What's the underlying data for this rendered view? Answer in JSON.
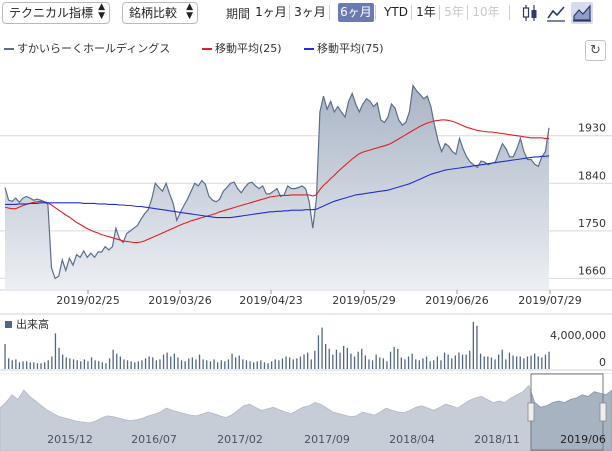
{
  "toolbar": {
    "indicator_select": "テクニカル指標",
    "compare_select": "銘柄比較",
    "period_label": "期間",
    "periods": [
      {
        "label": "1ヶ月",
        "state": "normal"
      },
      {
        "label": "3ヶ月",
        "state": "normal"
      },
      {
        "label": "6ヶ月",
        "state": "active"
      },
      {
        "label": "YTD",
        "state": "normal"
      },
      {
        "label": "1年",
        "state": "normal"
      },
      {
        "label": "5年",
        "state": "disabled"
      },
      {
        "label": "10年",
        "state": "disabled"
      }
    ],
    "chart_type_icons": [
      "candlestick-chart-icon",
      "line-chart-icon",
      "area-chart-icon"
    ],
    "active_chart_type": "area-chart-icon",
    "refresh_icon": "refresh-icon",
    "refresh_glyph": "↻"
  },
  "colors": {
    "price_line": "#5b6e8c",
    "price_fill_top": "#a9b4c5",
    "price_fill_bottom": "#e9ecf1",
    "ma25": "#e02020",
    "ma75": "#1f2fd0",
    "volume": "#4f6687",
    "overview_fill": "#a8b3c2",
    "accent": "#6a7ab3"
  },
  "chart_data": [
    {
      "type": "area",
      "series": [
        {
          "name": "すかいらーくホールディングス",
          "values": [
            1832,
            1808,
            1806,
            1812,
            1804,
            1812,
            1815,
            1812,
            1808,
            1810,
            1808,
            1805,
            1800,
            1680,
            1660,
            1664,
            1695,
            1675,
            1698,
            1685,
            1705,
            1700,
            1712,
            1700,
            1708,
            1700,
            1710,
            1710,
            1720,
            1714,
            1720,
            1755,
            1735,
            1728,
            1745,
            1750,
            1755,
            1760,
            1772,
            1782,
            1790,
            1810,
            1840,
            1832,
            1825,
            1840,
            1820,
            1802,
            1770,
            1785,
            1798,
            1810,
            1825,
            1840,
            1835,
            1845,
            1838,
            1815,
            1808,
            1805,
            1810,
            1825,
            1832,
            1840,
            1842,
            1830,
            1822,
            1832,
            1840,
            1842,
            1835,
            1830,
            1835,
            1820,
            1820,
            1825,
            1830,
            1815,
            1818,
            1835,
            1830,
            1830,
            1832,
            1835,
            1830,
            1805,
            1755,
            1810,
            1975,
            2005,
            1980,
            1995,
            1975,
            1985,
            1975,
            1965,
            1995,
            2010,
            1990,
            1975,
            1990,
            2000,
            1995,
            1985,
            1992,
            1960,
            1955,
            1965,
            1990,
            1982,
            1960,
            1950,
            1955,
            1975,
            2025,
            2015,
            2008,
            2000,
            2005,
            1985,
            1950,
            1920,
            1900,
            1915,
            1910,
            1900,
            1895,
            1925,
            1905,
            1890,
            1880,
            1875,
            1870,
            1882,
            1880,
            1875,
            1878,
            1880,
            1898,
            1915,
            1905,
            1890,
            1890,
            1905,
            1925,
            1900,
            1885,
            1885,
            1876,
            1872,
            1890,
            1900,
            1945
          ]
        },
        {
          "name": "移動平均(25)",
          "values": [
            1795,
            1793,
            1792,
            1792,
            1795,
            1798,
            1800,
            1802,
            1804,
            1805,
            1806,
            1805,
            1803,
            1799,
            1794,
            1789,
            1785,
            1780,
            1776,
            1771,
            1766,
            1762,
            1758,
            1754,
            1751,
            1748,
            1746,
            1743,
            1741,
            1739,
            1737,
            1735,
            1733,
            1731,
            1730,
            1729,
            1728,
            1728,
            1729,
            1731,
            1734,
            1737,
            1740,
            1743,
            1746,
            1749,
            1752,
            1755,
            1758,
            1761,
            1764,
            1766,
            1769,
            1771,
            1773,
            1775,
            1777,
            1779,
            1781,
            1783,
            1786,
            1788,
            1790,
            1792,
            1794,
            1796,
            1798,
            1800,
            1802,
            1804,
            1806,
            1808,
            1810,
            1812,
            1814,
            1815,
            1816,
            1817,
            1817,
            1817,
            1818,
            1818,
            1818,
            1818,
            1818,
            1818,
            1816,
            1818,
            1828,
            1836,
            1842,
            1849,
            1855,
            1862,
            1868,
            1874,
            1880,
            1886,
            1891,
            1896,
            1899,
            1901,
            1903,
            1905,
            1907,
            1909,
            1911,
            1913,
            1916,
            1920,
            1924,
            1928,
            1932,
            1936,
            1940,
            1944,
            1948,
            1951,
            1954,
            1956,
            1958,
            1959,
            1960,
            1960,
            1959,
            1957,
            1955,
            1952,
            1949,
            1946,
            1944,
            1942,
            1940,
            1939,
            1938,
            1937,
            1937,
            1936,
            1935,
            1934,
            1933,
            1932,
            1931,
            1930,
            1929,
            1928,
            1927,
            1926,
            1926,
            1926,
            1926,
            1925,
            1925
          ]
        },
        {
          "name": "移動平均(75)",
          "values": [
            1800,
            1800,
            1800,
            1800,
            1801,
            1801,
            1801,
            1802,
            1802,
            1802,
            1803,
            1803,
            1803,
            1803,
            1803,
            1803,
            1803,
            1803,
            1803,
            1803,
            1803,
            1803,
            1802,
            1802,
            1802,
            1802,
            1801,
            1801,
            1801,
            1800,
            1800,
            1800,
            1799,
            1799,
            1798,
            1798,
            1797,
            1796,
            1796,
            1795,
            1794,
            1793,
            1792,
            1791,
            1790,
            1789,
            1788,
            1787,
            1786,
            1785,
            1784,
            1783,
            1782,
            1781,
            1780,
            1779,
            1778,
            1777,
            1776,
            1775,
            1775,
            1775,
            1775,
            1775,
            1776,
            1777,
            1778,
            1779,
            1780,
            1781,
            1782,
            1783,
            1784,
            1785,
            1786,
            1786,
            1787,
            1787,
            1788,
            1788,
            1789,
            1789,
            1789,
            1789,
            1790,
            1790,
            1790,
            1791,
            1794,
            1797,
            1800,
            1803,
            1806,
            1808,
            1810,
            1812,
            1814,
            1816,
            1818,
            1819,
            1820,
            1821,
            1822,
            1823,
            1824,
            1825,
            1826,
            1827,
            1829,
            1831,
            1833,
            1835,
            1837,
            1839,
            1842,
            1845,
            1848,
            1851,
            1854,
            1857,
            1859,
            1861,
            1863,
            1865,
            1866,
            1867,
            1868,
            1869,
            1870,
            1871,
            1872,
            1873,
            1874,
            1875,
            1876,
            1877,
            1878,
            1879,
            1880,
            1881,
            1882,
            1883,
            1884,
            1885,
            1886,
            1887,
            1888,
            1889,
            1890,
            1890,
            1891,
            1891,
            1892
          ]
        }
      ],
      "xticks": [
        "2019/02/25",
        "2019/03/26",
        "2019/04/23",
        "2019/05/29",
        "2019/06/26",
        "2019/07/29"
      ],
      "yticks": [
        1660,
        1750,
        1840,
        1930
      ],
      "ylim": [
        1640,
        2060
      ],
      "grid": true,
      "legend": "top-left"
    },
    {
      "type": "bar",
      "title": "出来高",
      "yticks_labels": [
        "4,000,000",
        "0"
      ],
      "ylim": [
        0,
        5400000
      ],
      "values": [
        2600000,
        1100000,
        900000,
        1000000,
        700000,
        800000,
        800000,
        700000,
        700000,
        600000,
        600000,
        700000,
        900000,
        1300000,
        3700000,
        2200000,
        1500000,
        1200000,
        1100000,
        1000000,
        900000,
        800000,
        1000000,
        800000,
        1200000,
        900000,
        800000,
        700000,
        600000,
        1100000,
        2000000,
        1600000,
        1300000,
        1000000,
        900000,
        800000,
        700000,
        800000,
        900000,
        1100000,
        1300000,
        1200000,
        900000,
        1000000,
        1500000,
        1700000,
        1300000,
        1600000,
        1200000,
        900000,
        800000,
        1100000,
        1200000,
        1000000,
        1500000,
        1000000,
        900000,
        800000,
        1000000,
        700000,
        900000,
        800000,
        1000000,
        1600000,
        1200000,
        1400000,
        1000000,
        900000,
        800000,
        700000,
        800000,
        900000,
        700000,
        600000,
        800000,
        1000000,
        900000,
        1100000,
        1300000,
        1200000,
        1000000,
        1100000,
        1300000,
        1500000,
        1700000,
        1000000,
        1900000,
        3500000,
        4300000,
        2600000,
        2100000,
        1500000,
        2000000,
        1700000,
        2400000,
        2200000,
        1600000,
        1300000,
        1800000,
        2100000,
        1400000,
        1000000,
        900000,
        1500000,
        1200000,
        1100000,
        800000,
        1800000,
        2300000,
        2100000,
        1200000,
        1000000,
        1300000,
        1600000,
        1000000,
        900000,
        1100000,
        1300000,
        800000,
        900000,
        1300000,
        900000,
        1700000,
        1500000,
        1100000,
        1400000,
        1700000,
        1500000,
        1500000,
        1900000,
        4900000,
        4500000,
        1600000,
        1300000,
        1300000,
        1200000,
        1000000,
        1500000,
        2000000,
        1000000,
        1700000,
        1400000,
        1300000,
        1300000,
        1100000,
        1300000,
        1400000,
        1600000,
        1300000,
        1200000,
        1500000,
        1800000
      ]
    },
    {
      "type": "area",
      "xticks": [
        "2015/12",
        "2016/07",
        "2017/02",
        "2017/09",
        "2018/04",
        "2018/11",
        "2019/06"
      ],
      "values": [
        0.55,
        0.62,
        0.72,
        0.66,
        0.78,
        0.7,
        0.64,
        0.58,
        0.52,
        0.48,
        0.44,
        0.42,
        0.4,
        0.38,
        0.37,
        0.36,
        0.38,
        0.42,
        0.45,
        0.44,
        0.42,
        0.4,
        0.39,
        0.4,
        0.42,
        0.45,
        0.47,
        0.5,
        0.55,
        0.52,
        0.5,
        0.48,
        0.46,
        0.45,
        0.47,
        0.5,
        0.48,
        0.45,
        0.43,
        0.46,
        0.52,
        0.58,
        0.6,
        0.56,
        0.52,
        0.54,
        0.56,
        0.53,
        0.5,
        0.48,
        0.52,
        0.56,
        0.58,
        0.62,
        0.6,
        0.55,
        0.5,
        0.48,
        0.46,
        0.44,
        0.45,
        0.5,
        0.48,
        0.46,
        0.5,
        0.55,
        0.52,
        0.5,
        0.49,
        0.52,
        0.56,
        0.58,
        0.55,
        0.52,
        0.56,
        0.6,
        0.58,
        0.55,
        0.6,
        0.65,
        0.68,
        0.7,
        0.66,
        0.62,
        0.64,
        0.62,
        0.68,
        0.72,
        0.76,
        0.84,
        0.62,
        0.56,
        0.58,
        0.62,
        0.64,
        0.62,
        0.66,
        0.68,
        0.72,
        0.7,
        0.76,
        0.74,
        0.72,
        0.78
      ]
    }
  ]
}
